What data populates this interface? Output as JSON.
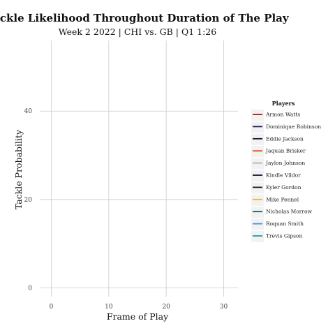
{
  "chart_data": {
    "type": "line",
    "title": "Tackle Likelihood Throughout Duration of The Play",
    "subtitle": "Week 2 2022 | CHI vs. GB | Q1 1:26",
    "xlabel": "Frame of Play",
    "ylabel": "Tackle Probability",
    "xlim": [
      -1,
      33.5
    ],
    "ylim": [
      -2,
      56
    ],
    "xticks": [
      0,
      10,
      20,
      30
    ],
    "yticks": [
      0,
      20,
      40
    ],
    "grid": true,
    "legend": {
      "title": "Players",
      "placement": "right"
    },
    "series": [
      {
        "name": "Armon Watts",
        "color": "#b0121b",
        "values": []
      },
      {
        "name": "Dominique Robinson",
        "color": "#1f1a5e",
        "values": []
      },
      {
        "name": "Eddie Jackson",
        "color": "#0b1630",
        "values": []
      },
      {
        "name": "Jaquan Brisker",
        "color": "#e8490f",
        "values": []
      },
      {
        "name": "Jaylon Johnson",
        "color": "#b3b3b3",
        "values": []
      },
      {
        "name": "Kindle Vildor",
        "color": "#0b1630",
        "values": []
      },
      {
        "name": "Kyler Gordon",
        "color": "#1a1a2e",
        "values": []
      },
      {
        "name": "Mike Pennel",
        "color": "#f5b324",
        "values": []
      },
      {
        "name": "Nicholas Morrow",
        "color": "#0f5e5e",
        "values": []
      },
      {
        "name": "Roquan Smith",
        "color": "#4a90d9",
        "values": []
      },
      {
        "name": "Trevis Gipson",
        "color": "#1e9aa8",
        "values": []
      }
    ]
  }
}
